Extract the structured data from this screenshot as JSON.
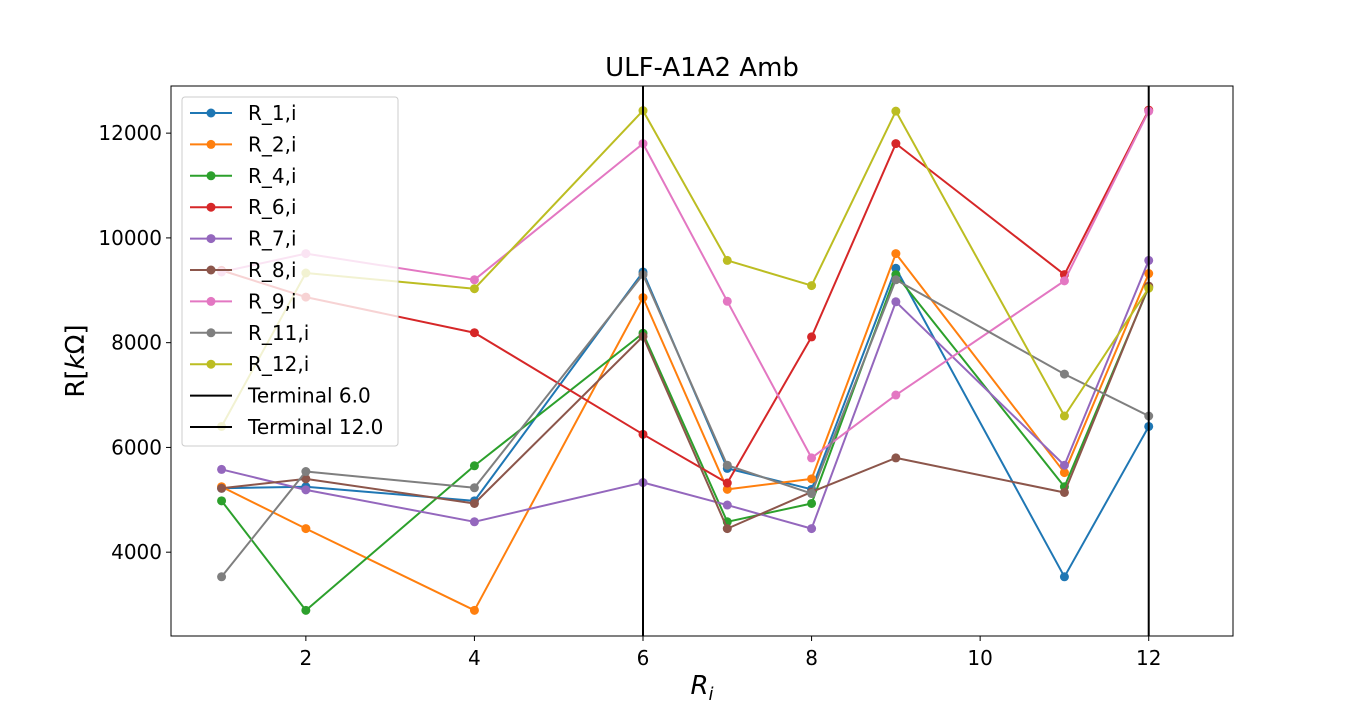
{
  "chart_data": {
    "type": "line",
    "title": "ULF-A1A2 Amb",
    "xlabel_main": "R",
    "xlabel_sub": "i",
    "ylabel_prefix": "R[",
    "ylabel_unit_italic": "k",
    "ylabel_omega": "Ω",
    "ylabel_suffix": "]",
    "xlim": [
      0.4,
      13.0
    ],
    "ylim": [
      2400,
      12900
    ],
    "xticks": [
      2,
      4,
      6,
      8,
      10,
      12
    ],
    "yticks": [
      4000,
      6000,
      8000,
      10000,
      12000
    ],
    "grid": false,
    "legend_position": "upper-left",
    "series": [
      {
        "name": "R_1,i",
        "color": "#1f77b4",
        "x": [
          1,
          2,
          4,
          6,
          7,
          8,
          9,
          11,
          12
        ],
        "y": [
          5220,
          5250,
          4980,
          9350,
          5600,
          5200,
          9420,
          3530,
          6400
        ]
      },
      {
        "name": "R_2,i",
        "color": "#ff7f0e",
        "x": [
          1,
          2,
          4,
          6,
          7,
          8,
          9,
          11,
          12
        ],
        "y": [
          5250,
          4450,
          2890,
          8860,
          5200,
          5400,
          9700,
          5520,
          9320
        ]
      },
      {
        "name": "R_4,i",
        "color": "#2ca02c",
        "x": [
          1,
          2,
          4,
          6,
          7,
          8,
          9,
          11,
          12
        ],
        "y": [
          4980,
          2890,
          5650,
          8180,
          4580,
          4930,
          9300,
          5250,
          9060
        ]
      },
      {
        "name": "R_6,i",
        "color": "#d62728",
        "x": [
          1,
          2,
          4,
          6,
          7,
          8,
          9,
          11,
          12
        ],
        "y": [
          9380,
          8870,
          8190,
          6250,
          5320,
          8110,
          11800,
          9300,
          12440
        ]
      },
      {
        "name": "R_7,i",
        "color": "#9467bd",
        "x": [
          1,
          2,
          4,
          6,
          7,
          8,
          9,
          11,
          12
        ],
        "y": [
          5580,
          5190,
          4580,
          5330,
          4900,
          4450,
          8780,
          5660,
          9570
        ]
      },
      {
        "name": "R_8,i",
        "color": "#8c564b",
        "x": [
          1,
          2,
          4,
          6,
          7,
          8,
          9,
          11,
          12
        ],
        "y": [
          5220,
          5400,
          4930,
          8120,
          4450,
          5150,
          5800,
          5140,
          9080
        ]
      },
      {
        "name": "R_9,i",
        "color": "#e377c2",
        "x": [
          1,
          2,
          4,
          6,
          7,
          8,
          9,
          11,
          12
        ],
        "y": [
          9350,
          9700,
          9200,
          11800,
          8790,
          5800,
          7000,
          9180,
          12420
        ]
      },
      {
        "name": "R_11,i",
        "color": "#7f7f7f",
        "x": [
          1,
          2,
          4,
          6,
          7,
          8,
          9,
          11,
          12
        ],
        "y": [
          3530,
          5540,
          5230,
          9300,
          5660,
          5120,
          9200,
          7400,
          6600
        ]
      },
      {
        "name": "R_12,i",
        "color": "#bcbd22",
        "x": [
          1,
          2,
          4,
          6,
          7,
          8,
          9,
          11,
          12
        ],
        "y": [
          6400,
          9330,
          9030,
          12430,
          9570,
          9090,
          12420,
          6600,
          9040
        ]
      }
    ],
    "vlines": [
      {
        "name": "Terminal 6.0",
        "x": 6,
        "color": "#000000"
      },
      {
        "name": "Terminal 12.0",
        "x": 12,
        "color": "#000000"
      }
    ]
  }
}
